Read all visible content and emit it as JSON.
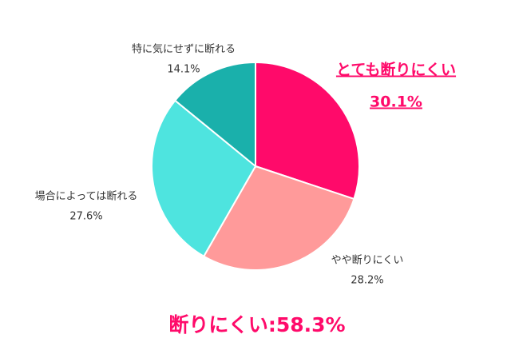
{
  "chart_data": {
    "type": "pie",
    "categories": [
      "とても断りにくい",
      "やや断りにくい",
      "場合によっては断れる",
      "特に気にせずに断れる"
    ],
    "values": [
      30.1,
      28.2,
      27.6,
      14.1
    ],
    "value_labels": [
      "30.1%",
      "28.2%",
      "27.6%",
      "14.1%"
    ],
    "colors": [
      "#ff0a6a",
      "#ff9a9a",
      "#4ee4df",
      "#1ab0ab"
    ],
    "annotation": "断りにくい:58.3%"
  }
}
